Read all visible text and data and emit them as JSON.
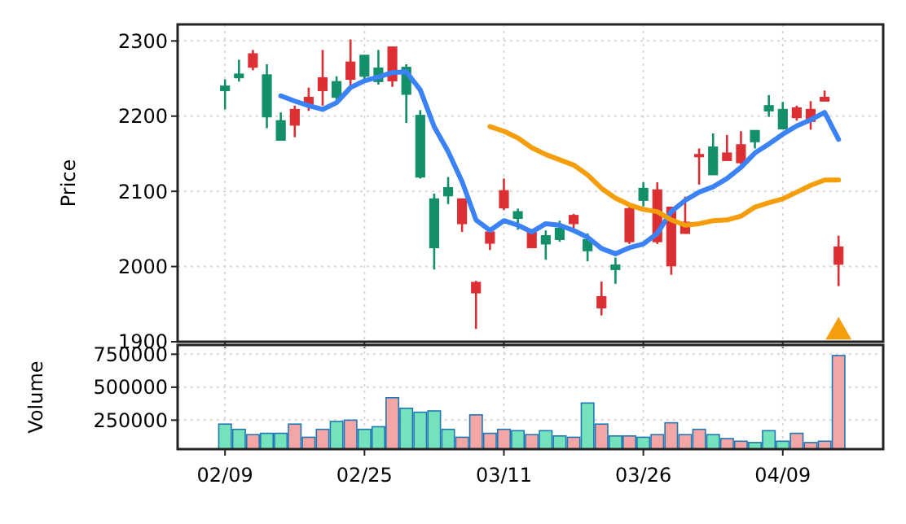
{
  "chart_data": [
    {
      "type": "candlestick",
      "ylabel": "Price",
      "categories": [
        null,
        null,
        null,
        null,
        null,
        null,
        null,
        null,
        null,
        null,
        null,
        null,
        null,
        null,
        null,
        null,
        null,
        null,
        null,
        null,
        null,
        null,
        null,
        null,
        null,
        null,
        null,
        null,
        null,
        null,
        null,
        null,
        null,
        null,
        null,
        null,
        null,
        null,
        null,
        null,
        null,
        null,
        null,
        null,
        null
      ],
      "ohlc": [
        [
          2234,
          2249,
          2209,
          2240
        ],
        [
          2251,
          2275,
          2246,
          2256
        ],
        [
          2283,
          2288,
          2261,
          2265
        ],
        [
          2199,
          2269,
          2184,
          2255
        ],
        [
          2168,
          2205,
          2168,
          2194
        ],
        [
          2209,
          2214,
          2172,
          2188
        ],
        [
          2225,
          2238,
          2207,
          2215
        ],
        [
          2251,
          2288,
          2214,
          2234
        ],
        [
          2225,
          2253,
          2218,
          2246
        ],
        [
          2272,
          2302,
          2239,
          2249
        ],
        [
          2253,
          2281,
          2246,
          2281
        ],
        [
          2246,
          2288,
          2242,
          2264
        ],
        [
          2292,
          2292,
          2239,
          2247
        ],
        [
          2229,
          2269,
          2191,
          2265
        ],
        [
          2119,
          2208,
          2117,
          2201
        ],
        [
          2025,
          2097,
          1996,
          2090
        ],
        [
          2094,
          2119,
          2083,
          2105
        ],
        [
          2090,
          2090,
          2046,
          2057
        ],
        [
          1979,
          1981,
          1917,
          1965
        ],
        [
          2046,
          2046,
          2022,
          2031
        ],
        [
          2101,
          2117,
          2075,
          2078
        ],
        [
          2064,
          2077,
          2049,
          2073
        ],
        [
          2048,
          2048,
          2025,
          2025
        ],
        [
          2030,
          2048,
          2009,
          2041
        ],
        [
          2036,
          2061,
          2033,
          2051
        ],
        [
          2068,
          2070,
          2051,
          2057
        ],
        [
          2021,
          2044,
          2007,
          2036
        ],
        [
          1960,
          1980,
          1935,
          1945
        ],
        [
          1996,
          2012,
          1977,
          2002
        ],
        [
          2077,
          2084,
          2030,
          2033
        ],
        [
          2088,
          2112,
          2080,
          2104
        ],
        [
          2102,
          2112,
          2030,
          2033
        ],
        [
          2079,
          2079,
          1989,
          2001
        ],
        [
          2059,
          2093,
          2044,
          2044
        ],
        [
          2149,
          2157,
          2109,
          2146
        ],
        [
          2122,
          2177,
          2122,
          2159
        ],
        [
          2151,
          2175,
          2141,
          2141
        ],
        [
          2162,
          2180,
          2136,
          2138
        ],
        [
          2166,
          2181,
          2157,
          2181
        ],
        [
          2207,
          2228,
          2199,
          2214
        ],
        [
          2183,
          2219,
          2183,
          2209
        ],
        [
          2211,
          2214,
          2194,
          2198
        ],
        [
          2209,
          2220,
          2182,
          2193
        ],
        [
          2225,
          2234,
          2220,
          2220
        ],
        [
          2026,
          2041,
          1974,
          2003
        ]
      ],
      "colors": [
        "#138f6a",
        "#138f6a",
        "#dc2f34",
        "#138f6a",
        "#138f6a",
        "#dc2f34",
        "#dc2f34",
        "#dc2f34",
        "#138f6a",
        "#dc2f34",
        "#138f6a",
        "#138f6a",
        "#dc2f34",
        "#138f6a",
        "#138f6a",
        "#138f6a",
        "#138f6a",
        "#dc2f34",
        "#dc2f34",
        "#dc2f34",
        "#dc2f34",
        "#138f6a",
        "#dc2f34",
        "#138f6a",
        "#138f6a",
        "#dc2f34",
        "#138f6a",
        "#dc2f34",
        "#138f6a",
        "#dc2f34",
        "#138f6a",
        "#dc2f34",
        "#dc2f34",
        "#dc2f34",
        "#dc2f34",
        "#138f6a",
        "#dc2f34",
        "#dc2f34",
        "#138f6a",
        "#138f6a",
        "#138f6a",
        "#dc2f34",
        "#dc2f34",
        "#dc2f34",
        "#dc2f34"
      ],
      "series": [
        {
          "type": "line",
          "color": "#3b82f6",
          "values": [
            null,
            null,
            null,
            null,
            2227,
            2220,
            2214,
            2209,
            2218,
            2238,
            2247,
            2252,
            2258,
            2259,
            2235,
            2186,
            2153,
            2113,
            2062,
            2048,
            2061,
            2055,
            2046,
            2057,
            2055,
            2048,
            2039,
            2024,
            2017,
            2025,
            2030,
            2044,
            2073,
            2088,
            2099,
            2106,
            2117,
            2132,
            2151,
            2163,
            2176,
            2187,
            2195,
            2205,
            2169
          ]
        },
        {
          "type": "line",
          "color": "#f59e0b",
          "values": [
            null,
            null,
            null,
            null,
            null,
            null,
            null,
            null,
            null,
            null,
            null,
            null,
            null,
            null,
            null,
            null,
            null,
            null,
            null,
            2186,
            2180,
            2171,
            2158,
            2149,
            2142,
            2135,
            2122,
            2104,
            2091,
            2082,
            2076,
            2073,
            2062,
            2055,
            2057,
            2061,
            2062,
            2067,
            2079,
            2085,
            2090,
            2099,
            2108,
            2115,
            2115
          ]
        },
        {
          "type": "scatter",
          "marker": "triangle",
          "color": "#f59e0b",
          "values": [
            null,
            null,
            null,
            null,
            null,
            null,
            null,
            null,
            null,
            null,
            null,
            null,
            null,
            null,
            null,
            null,
            null,
            null,
            null,
            null,
            null,
            null,
            null,
            null,
            null,
            null,
            null,
            null,
            null,
            null,
            null,
            null,
            null,
            null,
            null,
            null,
            null,
            null,
            null,
            null,
            null,
            null,
            null,
            null,
            1913
          ]
        }
      ],
      "ylim": [
        1900,
        2322
      ],
      "yticks": [
        1900,
        2000,
        2100,
        2200,
        2300
      ],
      "grid": true,
      "tick_labels": "y"
    },
    {
      "type": "bar",
      "ylabel": "Volume",
      "categories": [
        "02/09",
        null,
        null,
        null,
        null,
        null,
        null,
        null,
        null,
        null,
        "02/25",
        null,
        null,
        null,
        null,
        null,
        null,
        null,
        null,
        null,
        "03/11",
        null,
        null,
        null,
        null,
        null,
        null,
        null,
        null,
        null,
        "03/26",
        null,
        null,
        null,
        null,
        null,
        null,
        null,
        null,
        null,
        "04/09",
        null,
        null,
        null,
        null
      ],
      "values": [
        220000,
        180000,
        140000,
        150000,
        150000,
        220000,
        120000,
        180000,
        240000,
        250000,
        180000,
        200000,
        420000,
        340000,
        310000,
        320000,
        180000,
        120000,
        290000,
        150000,
        180000,
        170000,
        140000,
        170000,
        130000,
        120000,
        380000,
        220000,
        130000,
        130000,
        120000,
        140000,
        230000,
        140000,
        180000,
        140000,
        110000,
        90000,
        80000,
        170000,
        90000,
        150000,
        80000,
        90000,
        740000
      ],
      "colors": [
        "#74e3bb",
        "#74e3bb",
        "#f4a5a5",
        "#74e3bb",
        "#74e3bb",
        "#f4a5a5",
        "#f4a5a5",
        "#f4a5a5",
        "#74e3bb",
        "#f4a5a5",
        "#74e3bb",
        "#74e3bb",
        "#f4a5a5",
        "#74e3bb",
        "#74e3bb",
        "#74e3bb",
        "#74e3bb",
        "#f4a5a5",
        "#f4a5a5",
        "#f4a5a5",
        "#f4a5a5",
        "#74e3bb",
        "#f4a5a5",
        "#74e3bb",
        "#74e3bb",
        "#f4a5a5",
        "#74e3bb",
        "#f4a5a5",
        "#74e3bb",
        "#f4a5a5",
        "#74e3bb",
        "#f4a5a5",
        "#f4a5a5",
        "#f4a5a5",
        "#f4a5a5",
        "#74e3bb",
        "#f4a5a5",
        "#f4a5a5",
        "#74e3bb",
        "#74e3bb",
        "#74e3bb",
        "#f4a5a5",
        "#f4a5a5",
        "#f4a5a5",
        "#f4a5a5"
      ],
      "ylim": [
        30000,
        820000
      ],
      "yticks": [
        250000,
        500000,
        750000
      ],
      "grid": true
    }
  ]
}
